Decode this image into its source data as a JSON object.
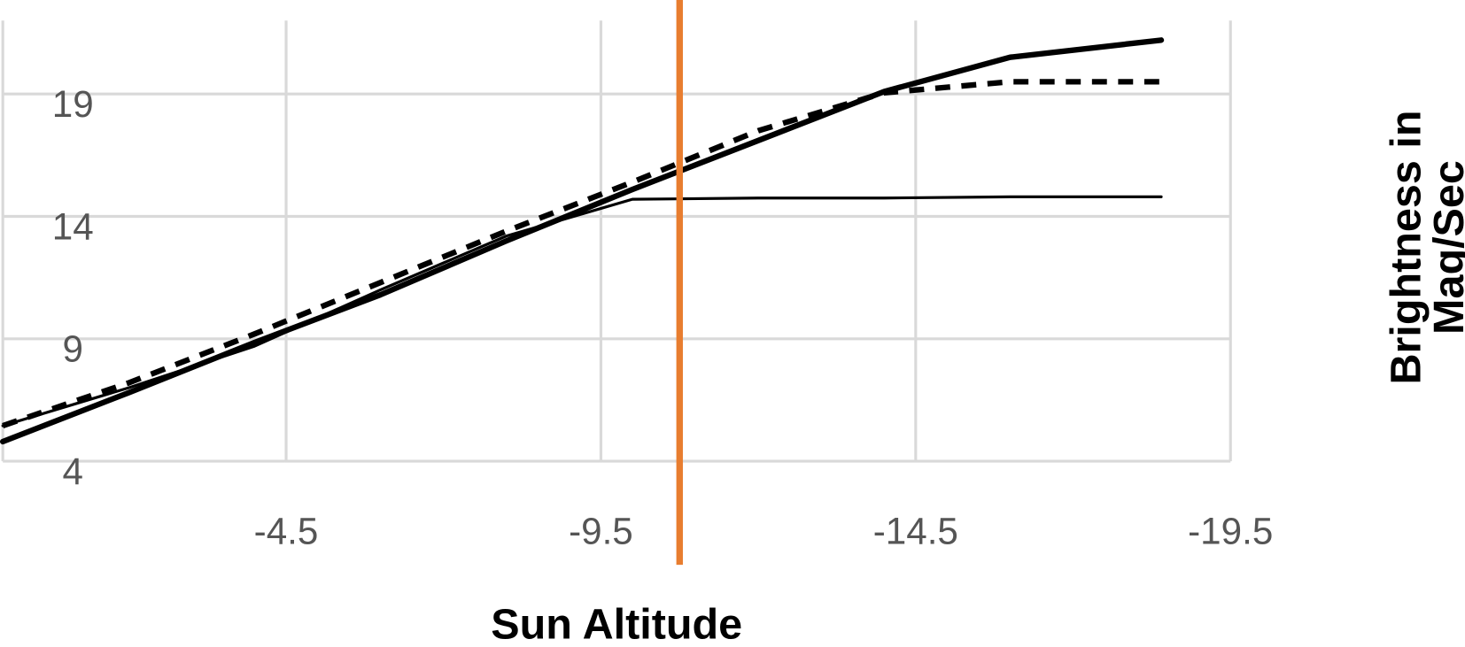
{
  "chart_data": {
    "type": "line",
    "xlabel": "Sun Altitude",
    "ylabel": [
      "Brightness in",
      "Mag/Sec"
    ],
    "x": [
      0,
      -2,
      -4,
      -6,
      -8,
      -10,
      -12,
      -14,
      -16,
      -18.4
    ],
    "series": [
      {
        "color": "#000000",
        "line_width": 6,
        "dashed": false,
        "values": [
          4.8,
          6.8,
          8.85,
          10.8,
          13.0,
          15.1,
          17.1,
          19.1,
          20.5,
          21.2
        ]
      },
      {
        "color": "#000000",
        "line_width": 6,
        "dashed": true,
        "values": [
          5.45,
          7.2,
          9.2,
          11.3,
          13.4,
          15.4,
          17.5,
          19.05,
          19.5,
          19.5
        ]
      },
      {
        "color": "#000000",
        "line_width": 3,
        "dashed": false,
        "values": [
          5.45,
          7.0,
          8.7,
          11.0,
          13.2,
          14.7,
          14.75,
          14.75,
          14.8,
          14.8
        ]
      }
    ],
    "vline": {
      "x": -10.75,
      "color": "#e87d2f"
    },
    "xlim": [
      0,
      -19.5
    ],
    "xticks": [
      -4.5,
      -9.5,
      -14.5,
      -19.5
    ],
    "ylim": [
      4,
      22
    ],
    "yticks": [
      4,
      9,
      14,
      19
    ],
    "grid": true
  }
}
